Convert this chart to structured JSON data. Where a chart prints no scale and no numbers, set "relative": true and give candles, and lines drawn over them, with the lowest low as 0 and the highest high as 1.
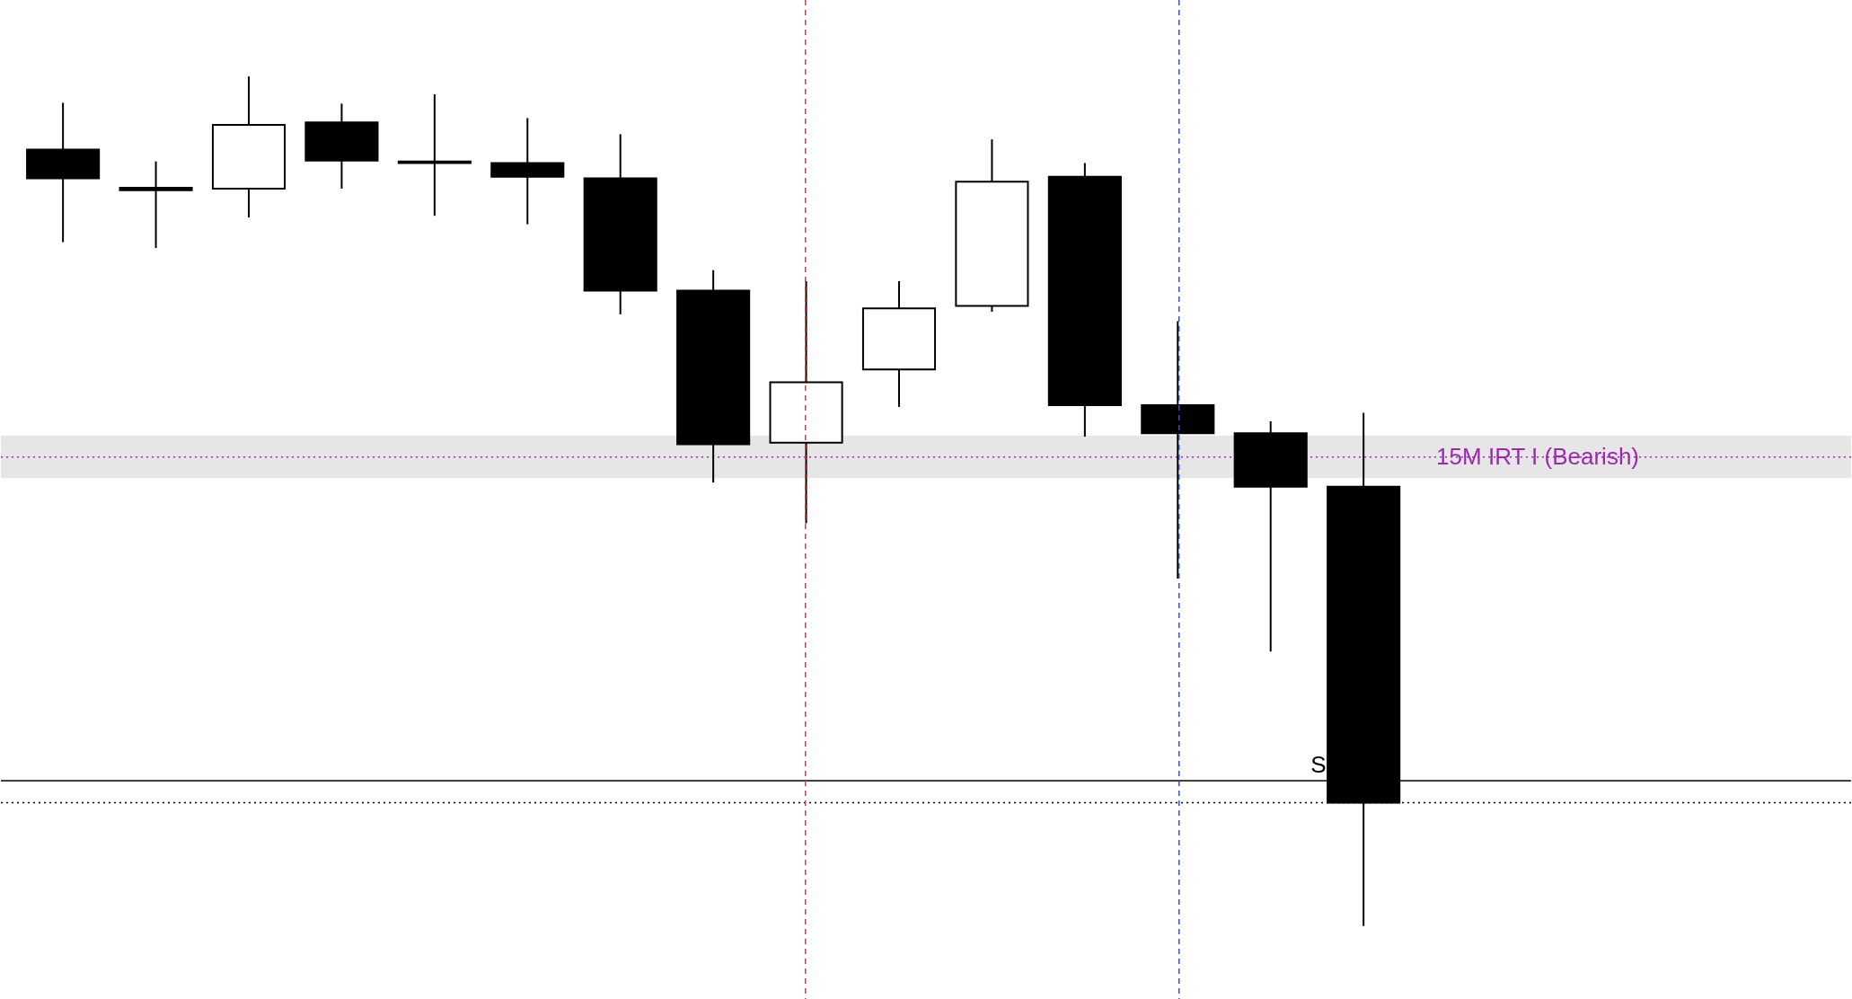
{
  "chart_data": {
    "type": "candlestick",
    "relative": true,
    "categories": [
      null,
      null,
      null,
      null,
      null,
      null,
      null,
      null,
      null,
      null,
      null,
      null,
      null,
      null,
      null
    ],
    "ohlc": [
      [
        0.914,
        0.969,
        0.805,
        0.88
      ],
      [
        0.869,
        0.9,
        0.798,
        0.866
      ],
      [
        0.868,
        1.0,
        0.834,
        0.943
      ],
      [
        0.946,
        0.968,
        0.868,
        0.901
      ],
      [
        0.9,
        0.979,
        0.836,
        0.898
      ],
      [
        0.898,
        0.951,
        0.826,
        0.882
      ],
      [
        0.88,
        0.932,
        0.72,
        0.748
      ],
      [
        0.748,
        0.772,
        0.522,
        0.567
      ],
      [
        0.569,
        0.759,
        0.474,
        0.64
      ],
      [
        0.655,
        0.759,
        0.611,
        0.727
      ],
      [
        0.73,
        0.926,
        0.723,
        0.876
      ],
      [
        0.882,
        0.898,
        0.576,
        0.613
      ],
      [
        0.613,
        0.712,
        0.409,
        0.58
      ],
      [
        0.58,
        0.594,
        0.323,
        0.517
      ],
      [
        0.517,
        0.604,
        0.0,
        0.145
      ]
    ],
    "bands": [
      {
        "axis": "y",
        "from": 0.527,
        "to": 0.577,
        "color": "#e6e6e6"
      }
    ],
    "ref_lines": [
      {
        "axis": "y",
        "value": 0.552,
        "label": "15M IRT I (Bearish)",
        "color": "#9c27b0",
        "line_style": "dotted"
      },
      {
        "axis": "y",
        "value": 0.171,
        "color": "#000000",
        "line_style": "solid"
      },
      {
        "axis": "y",
        "value": 0.145,
        "color": "#000000",
        "line_style": "dotted"
      }
    ],
    "annotations": [
      "S"
    ]
  }
}
